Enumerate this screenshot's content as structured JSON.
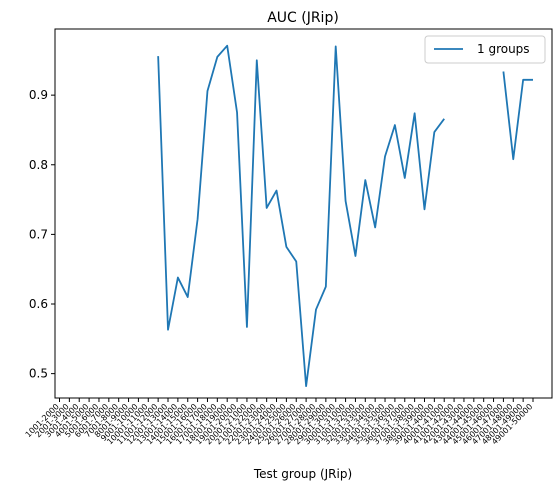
{
  "chart_data": {
    "type": "line",
    "title": "AUC (JRip)",
    "xlabel": "Test group (JRip)",
    "ylabel": "",
    "ylim": [
      0.465,
      0.995
    ],
    "yticks": [
      0.5,
      0.6,
      0.7,
      0.8,
      0.9
    ],
    "grid": false,
    "legend_position": "top-right",
    "categories": [
      "1001-2000",
      "2001-3000",
      "3001-4000",
      "4001-5000",
      "5001-6000",
      "6001-7000",
      "7001-8000",
      "8001-9000",
      "9001-10000",
      "10001-11000",
      "11001-12000",
      "12001-13000",
      "13001-14000",
      "14001-15000",
      "15001-16000",
      "16001-17000",
      "17001-18000",
      "18001-19000",
      "19001-20000",
      "20001-21000",
      "21001-22000",
      "22001-23000",
      "23001-24000",
      "24001-25000",
      "25001-26000",
      "26001-27000",
      "27001-28000",
      "28001-29000",
      "29001-30000",
      "30001-31000",
      "31001-32000",
      "32001-33000",
      "33001-34000",
      "34001-35000",
      "35001-36000",
      "36001-37000",
      "37001-38000",
      "38001-39000",
      "39001-40000",
      "40001-41000",
      "41001-42000",
      "42001-43000",
      "43001-44000",
      "44001-45000",
      "45001-46000",
      "46001-47000",
      "47001-48000",
      "48001-49000",
      "49001-50000"
    ],
    "series": [
      {
        "name": "1 groups",
        "color": "#1f77b4",
        "values": [
          null,
          null,
          null,
          null,
          null,
          null,
          null,
          null,
          null,
          null,
          0.956,
          0.563,
          0.638,
          0.61,
          0.722,
          0.906,
          0.955,
          0.971,
          0.875,
          0.567,
          0.95,
          0.738,
          0.763,
          0.682,
          0.661,
          0.482,
          0.592,
          0.625,
          0.97,
          0.748,
          0.669,
          0.778,
          0.71,
          0.812,
          0.857,
          0.781,
          0.874,
          0.736,
          0.847,
          0.866,
          null,
          null,
          null,
          null,
          null,
          0.934,
          0.808,
          0.922,
          0.922
        ]
      }
    ]
  }
}
